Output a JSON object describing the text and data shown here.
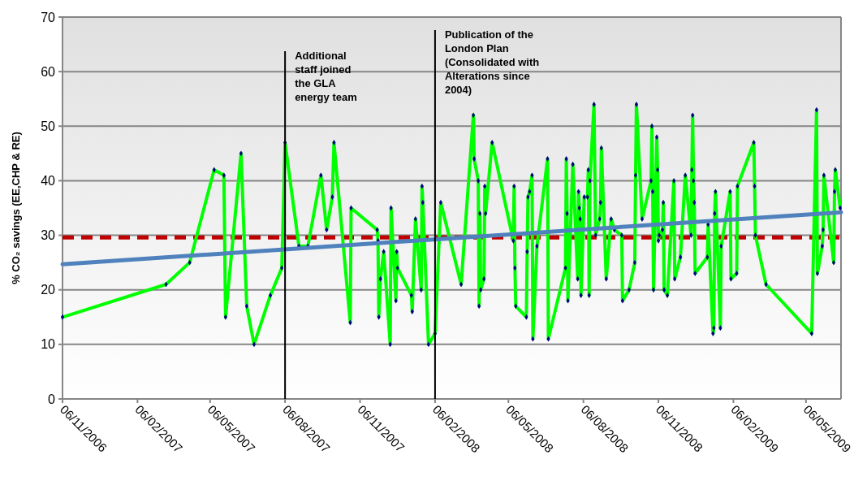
{
  "chart_data": {
    "type": "line",
    "ylabel": "% CO₂ savings (EE,CHP & RE)",
    "xlim": [
      "2006-11-06",
      "2009-06-18"
    ],
    "xticks": [
      {
        "value": "2006-11-06",
        "label": "06/11/2006"
      },
      {
        "value": "2007-02-06",
        "label": "06/02/2007"
      },
      {
        "value": "2007-05-06",
        "label": "06/05/2007"
      },
      {
        "value": "2007-08-06",
        "label": "06/08/2007"
      },
      {
        "value": "2007-11-06",
        "label": "06/11/2007"
      },
      {
        "value": "2008-02-06",
        "label": "06/02/2008"
      },
      {
        "value": "2008-05-06",
        "label": "06/05/2008"
      },
      {
        "value": "2008-08-06",
        "label": "06/08/2008"
      },
      {
        "value": "2008-11-06",
        "label": "06/11/2008"
      },
      {
        "value": "2009-02-06",
        "label": "06/02/2009"
      },
      {
        "value": "2009-05-06",
        "label": "06/05/2009"
      }
    ],
    "ylim": [
      0,
      70
    ],
    "yticks": [
      0,
      10,
      20,
      30,
      40,
      50,
      60,
      70
    ],
    "grid": "y",
    "series": [
      {
        "color": "#00ff00",
        "marker": "diamond",
        "x": [
          "2006-11-06",
          "2007-03-13",
          "2007-04-11",
          "2007-05-11",
          "2007-05-23",
          "2007-05-25",
          "2007-06-13",
          "2007-06-20",
          "2007-06-29",
          "2007-07-19",
          "2007-08-02",
          "2007-08-06",
          "2007-08-23",
          "2007-09-03",
          "2007-09-19",
          "2007-09-26",
          "2007-10-03",
          "2007-10-05",
          "2007-10-25",
          "2007-10-26",
          "2007-11-27",
          "2007-11-28",
          "2007-11-29",
          "2007-12-01",
          "2007-12-05",
          "2007-12-13",
          "2007-12-14",
          "2007-12-20",
          "2007-12-21",
          "2007-12-22",
          "2008-01-08",
          "2008-01-09",
          "2008-01-13",
          "2008-01-20",
          "2008-01-21",
          "2008-01-22",
          "2008-01-29",
          "2008-02-06",
          "2008-02-13",
          "2008-03-09",
          "2008-03-24",
          "2008-03-25",
          "2008-03-30",
          "2008-03-31",
          "2008-04-01",
          "2008-04-02",
          "2008-04-06",
          "2008-04-07",
          "2008-04-08",
          "2008-04-16",
          "2008-05-12",
          "2008-05-13",
          "2008-05-14",
          "2008-05-15",
          "2008-05-28",
          "2008-05-29",
          "2008-05-30",
          "2008-06-01",
          "2008-06-04",
          "2008-06-05",
          "2008-06-10",
          "2008-06-23",
          "2008-06-24",
          "2008-07-15",
          "2008-07-16",
          "2008-07-17",
          "2008-07-18",
          "2008-07-24",
          "2008-07-30",
          "2008-07-31",
          "2008-08-01",
          "2008-08-02",
          "2008-08-03",
          "2008-08-07",
          "2008-08-11",
          "2008-08-12",
          "2008-08-13",
          "2008-08-14",
          "2008-08-19",
          "2008-08-21",
          "2008-08-26",
          "2008-08-27",
          "2008-08-28",
          "2008-09-03",
          "2008-09-09",
          "2008-09-13",
          "2008-09-22",
          "2008-09-23",
          "2008-10-01",
          "2008-10-08",
          "2008-10-09",
          "2008-10-10",
          "2008-10-17",
          "2008-10-28",
          "2008-10-29",
          "2008-10-30",
          "2008-10-31",
          "2008-11-04",
          "2008-11-05",
          "2008-11-06",
          "2008-11-07",
          "2008-11-11",
          "2008-11-12",
          "2008-11-13",
          "2008-11-17",
          "2008-11-25",
          "2008-11-26",
          "2008-12-03",
          "2008-12-09",
          "2008-12-16",
          "2008-12-17",
          "2008-12-18",
          "2008-12-19",
          "2008-12-20",
          "2008-12-21",
          "2009-01-05",
          "2009-01-06",
          "2009-01-12",
          "2009-01-13",
          "2009-01-14",
          "2009-01-15",
          "2009-01-21",
          "2009-01-22",
          "2009-02-02",
          "2009-02-03",
          "2009-02-10",
          "2009-02-11",
          "2009-03-03",
          "2009-03-04",
          "2009-03-05",
          "2009-03-18",
          "2009-05-13",
          "2009-05-19",
          "2009-05-20",
          "2009-05-26",
          "2009-05-27",
          "2009-05-28",
          "2009-06-09",
          "2009-06-10",
          "2009-06-11",
          "2009-06-17"
        ],
        "values": [
          15,
          21,
          25,
          42,
          41,
          15,
          45,
          17,
          10,
          19,
          24,
          47,
          28,
          28,
          41,
          31,
          37,
          47,
          14,
          35,
          31,
          29,
          15,
          22,
          27,
          10,
          35,
          18,
          27,
          24,
          19,
          16,
          33,
          20,
          39,
          36,
          10,
          12,
          36,
          21,
          52,
          44,
          40,
          17,
          34,
          20,
          22,
          39,
          34,
          47,
          29,
          39,
          24,
          17,
          15,
          27,
          37,
          38,
          41,
          11,
          28,
          44,
          11,
          24,
          44,
          34,
          18,
          43,
          22,
          38,
          35,
          33,
          19,
          37,
          37,
          42,
          19,
          40,
          54,
          30,
          33,
          36,
          46,
          22,
          33,
          31,
          30,
          18,
          20,
          25,
          41,
          54,
          33,
          40,
          50,
          38,
          20,
          48,
          42,
          29,
          30,
          31,
          36,
          20,
          19,
          40,
          22,
          26,
          41,
          30,
          42,
          52,
          40,
          36,
          23,
          26,
          32,
          12,
          13,
          34,
          38,
          13,
          28,
          38,
          22,
          23,
          39,
          47,
          39,
          30,
          21,
          12,
          53,
          23,
          28,
          31,
          41,
          25,
          38,
          42,
          35
        ]
      },
      {
        "type": "line",
        "color": "#4f81bd",
        "marker": "none",
        "x": [
          "2006-11-06",
          "2009-06-18"
        ],
        "values": [
          24.7,
          34.2
        ]
      }
    ],
    "ref_lines": [
      {
        "axis": "y",
        "value": 29.6,
        "color": "#c00000",
        "line_style": "dashed"
      },
      {
        "axis": "x",
        "value": "2007-08-06",
        "color": "#000000",
        "label": "Additional staff joined the GLA energy team"
      },
      {
        "axis": "x",
        "value": "2008-02-06",
        "color": "#000000",
        "label": "Publication of the London Plan (Consolidated with Alterations since 2004)"
      }
    ]
  }
}
